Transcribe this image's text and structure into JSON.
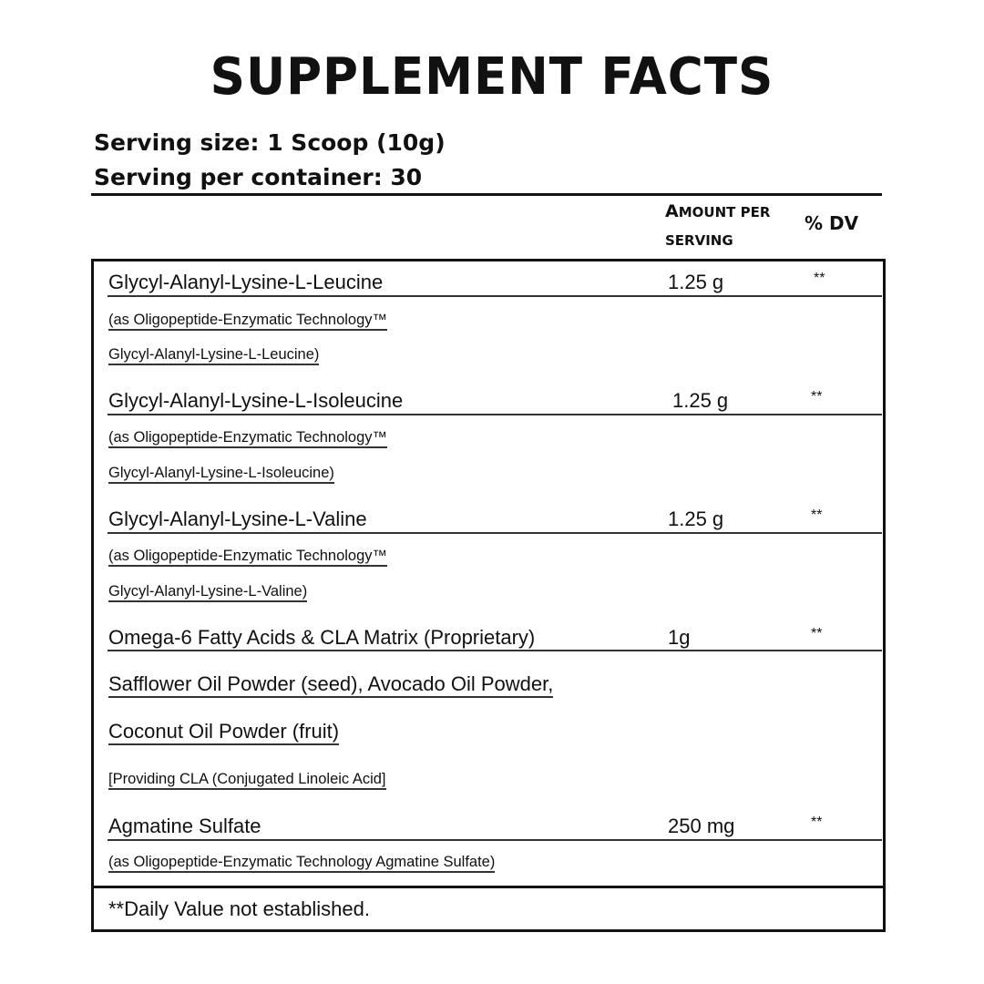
{
  "title": "SUPPLEMENT FACTS",
  "serving_size": "Serving size: 1 Scoop (10g)",
  "servings_per_container": "Serving per container: 30",
  "header": {
    "amount_line1_cap": "A",
    "amount_line1_rest": "MOUNT PER",
    "amount_line2": "SERVING",
    "dv": "% DV"
  },
  "rows": [
    {
      "name": "Glycyl-Alanyl-Lysine-L-Leucine",
      "amount": "1.25 g",
      "dv": "**",
      "sub": [
        "(as Oligopeptide-Enzymatic Technology™",
        "Glycyl-Alanyl-Lysine-L-Leucine)"
      ]
    },
    {
      "name": "Glycyl-Alanyl-Lysine-L-Isoleucine",
      "amount": "1.25 g",
      "dv": "**",
      "sub": [
        "(as Oligopeptide-Enzymatic Technology™",
        "Glycyl-Alanyl-Lysine-L-Isoleucine)"
      ]
    },
    {
      "name": "Glycyl-Alanyl-Lysine-L-Valine",
      "amount": "1.25 g",
      "dv": "**",
      "sub": [
        "(as Oligopeptide-Enzymatic Technology™",
        "Glycyl-Alanyl-Lysine-L-Valine)"
      ]
    },
    {
      "name": "Omega-6 Fatty Acids & CLA Matrix (Proprietary)",
      "amount": "1g",
      "dv": "**",
      "sub": [
        "Safflower Oil Powder (seed), Avocado Oil Powder,",
        "Coconut Oil Powder (fruit)",
        "[Providing CLA (Conjugated Linoleic Acid]"
      ]
    },
    {
      "name": "Agmatine Sulfate",
      "amount": "250 mg",
      "dv": "**",
      "sub": [
        "(as Oligopeptide-Enzymatic Technology Agmatine Sulfate)"
      ]
    }
  ],
  "footnote": "**Daily Value not established."
}
